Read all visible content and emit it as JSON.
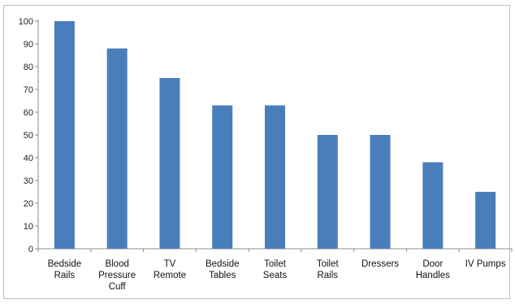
{
  "chart_data": {
    "type": "bar",
    "categories": [
      [
        "Bedside",
        "Rails"
      ],
      [
        "Blood",
        "Pressure",
        "Cuff"
      ],
      [
        "TV",
        "Remote"
      ],
      [
        "Bedside",
        "Tables"
      ],
      [
        "Toilet",
        "Seats"
      ],
      [
        "Toilet",
        "Rails"
      ],
      [
        "Dressers"
      ],
      [
        "Door",
        "Handles"
      ],
      [
        "IV Pumps"
      ]
    ],
    "values": [
      100,
      88,
      75,
      63,
      63,
      50,
      50,
      38,
      25
    ],
    "title": "",
    "xlabel": "",
    "ylabel": "",
    "ylim": [
      0,
      100
    ],
    "yticks": [
      0,
      10,
      20,
      30,
      40,
      50,
      60,
      70,
      80,
      90,
      100
    ],
    "grid": false,
    "legend": "none",
    "bar_color": "#4a7ebb",
    "axis_color": "#8c8c8c"
  }
}
